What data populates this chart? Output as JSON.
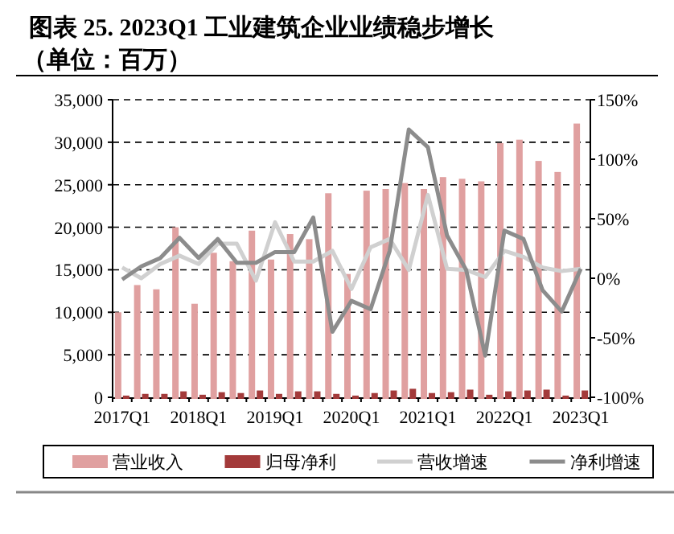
{
  "chart_data": {
    "type": "bar",
    "title": "图表 25. 2023Q1 工业建筑企业业绩稳步增长",
    "subtitle": "（单位：百万）",
    "categories": [
      "2017Q1",
      null,
      null,
      null,
      "2018Q1",
      null,
      null,
      null,
      "2019Q1",
      null,
      null,
      null,
      "2020Q1",
      null,
      null,
      null,
      "2021Q1",
      null,
      null,
      null,
      "2022Q1",
      null,
      null,
      null,
      "2023Q1"
    ],
    "series": [
      {
        "name": "营业收入",
        "color": "#e0a0a0",
        "values": [
          10000,
          13200,
          12700,
          20000,
          11000,
          17000,
          16000,
          19600,
          16200,
          19200,
          18600,
          24000,
          14500,
          24300,
          24500,
          25200,
          24500,
          25900,
          25700,
          25400,
          29900,
          30300,
          27800,
          26500,
          32200
        ]
      },
      {
        "name": "归母净利",
        "color": "#a33a3a",
        "values": [
          200,
          400,
          400,
          700,
          300,
          600,
          500,
          800,
          400,
          700,
          700,
          400,
          200,
          500,
          800,
          1000,
          500,
          600,
          900,
          300,
          700,
          800,
          900,
          200,
          800
        ]
      },
      {
        "name": "营收增速",
        "type": "line",
        "axis": "y2",
        "color": "#d0d0d0",
        "values": [
          9,
          0,
          12,
          19,
          12,
          29,
          29,
          -2,
          47,
          14,
          14,
          23,
          -9,
          26,
          33,
          7,
          70,
          8,
          7,
          1,
          23,
          18,
          9,
          6,
          8
        ]
      },
      {
        "name": "净利增速",
        "type": "line",
        "axis": "y2",
        "color": "#8c8c8c",
        "values": [
          -1,
          10,
          17,
          34,
          17,
          33,
          13,
          13,
          22,
          22,
          51,
          -45,
          -19,
          -26,
          23,
          125,
          110,
          36,
          7,
          -65,
          40,
          33,
          -10,
          -28,
          8
        ]
      }
    ],
    "ylim": [
      0,
      35000
    ],
    "yticks": [
      {
        "value": 0,
        "label": "0"
      },
      {
        "value": 5000,
        "label": "5,000"
      },
      {
        "value": 10000,
        "label": "10,000"
      },
      {
        "value": 15000,
        "label": "15,000"
      },
      {
        "value": 20000,
        "label": "20,000"
      },
      {
        "value": 25000,
        "label": "25,000"
      },
      {
        "value": 30000,
        "label": "30,000"
      },
      {
        "value": 35000,
        "label": "35,000"
      }
    ],
    "y2lim": [
      -100,
      150
    ],
    "y2ticks": [
      {
        "value": -100,
        "label": "-100%"
      },
      {
        "value": -50,
        "label": "-50%"
      },
      {
        "value": 0,
        "label": "0%"
      },
      {
        "value": 50,
        "label": "50%"
      },
      {
        "value": 100,
        "label": "100%"
      },
      {
        "value": 150,
        "label": "150%"
      }
    ],
    "grid": "y",
    "legend": "bottom",
    "marker": "none",
    "line_style": "solid"
  }
}
